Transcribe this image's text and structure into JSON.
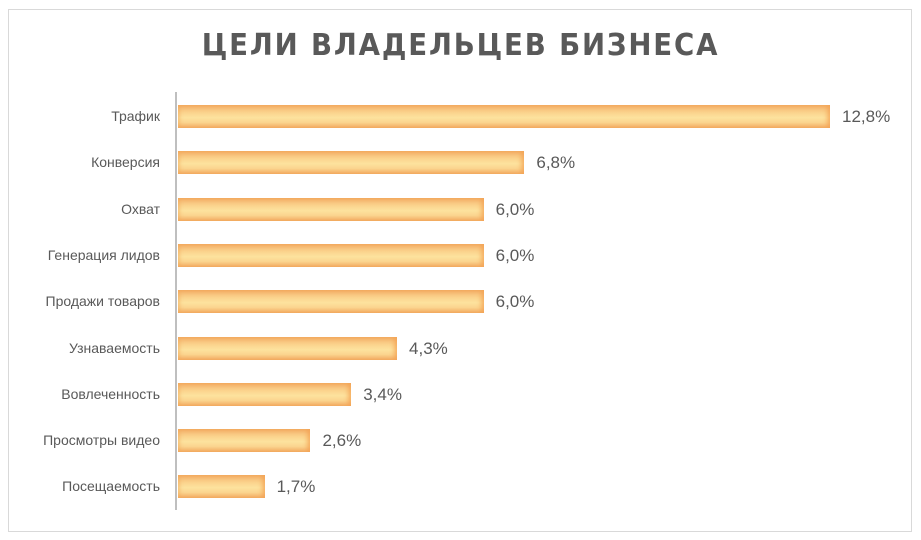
{
  "title": "ЦЕЛИ ВЛАДЕЛЬЦЕВ БИЗНЕСА",
  "chart_data": {
    "type": "bar",
    "orientation": "horizontal",
    "title": "ЦЕЛИ ВЛАДЕЛЬЦЕВ БИЗНЕСА",
    "categories": [
      "Трафик",
      "Конверсия",
      "Охват",
      "Генерация лидов",
      "Продажи товаров",
      "Узнаваемость",
      "Вовлеченность",
      "Просмотры видео",
      "Посещаемость"
    ],
    "values": [
      12.8,
      6.8,
      6.0,
      6.0,
      6.0,
      4.3,
      3.4,
      2.6,
      1.7
    ],
    "value_labels": [
      "12,8%",
      "6,8%",
      "6,0%",
      "6,0%",
      "6,0%",
      "4,3%",
      "3,4%",
      "2,6%",
      "1,7%"
    ],
    "xlabel": "",
    "ylabel": "",
    "grid": false,
    "legend": "none",
    "bar_color": "#fbd58f",
    "bar_edge_color": "#f4b16a"
  }
}
